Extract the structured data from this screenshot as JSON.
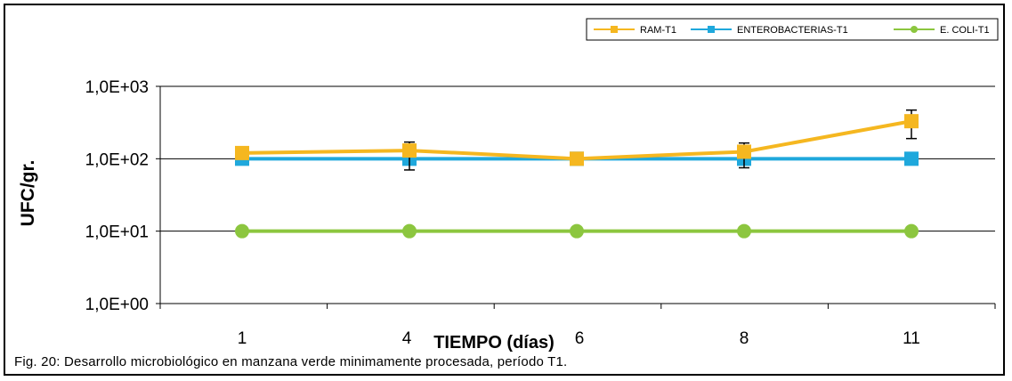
{
  "caption": "Fig. 20: Desarrollo microbiológico en manzana verde minimamente procesada, período T1.",
  "chart_data": {
    "type": "line",
    "title": "",
    "xlabel": "TIEMPO (días)",
    "ylabel": "UFC/gr.",
    "y_scale": "log",
    "ylim": [
      1,
      1000
    ],
    "y_ticks": [
      "1,0E+00",
      "1,0E+01",
      "1,0E+02",
      "1,0E+03"
    ],
    "categories": [
      "1",
      "4",
      "6",
      "8",
      "11"
    ],
    "grid": "horizontal",
    "legend_position": "top-right",
    "series": [
      {
        "name": "RAM-T1",
        "color": "#f5b720",
        "marker": "square",
        "values": [
          120,
          130,
          100,
          125,
          330
        ],
        "error_low": [
          null,
          70,
          null,
          75,
          190
        ],
        "error_high": [
          null,
          170,
          null,
          165,
          470
        ]
      },
      {
        "name": "ENTEROBACTERIAS-T1",
        "color": "#1fa8dc",
        "marker": "square",
        "values": [
          100,
          100,
          100,
          100,
          100
        ]
      },
      {
        "name": "E. COLI-T1",
        "color": "#8cc63f",
        "marker": "circle",
        "values": [
          10,
          10,
          10,
          10,
          10
        ]
      }
    ]
  }
}
